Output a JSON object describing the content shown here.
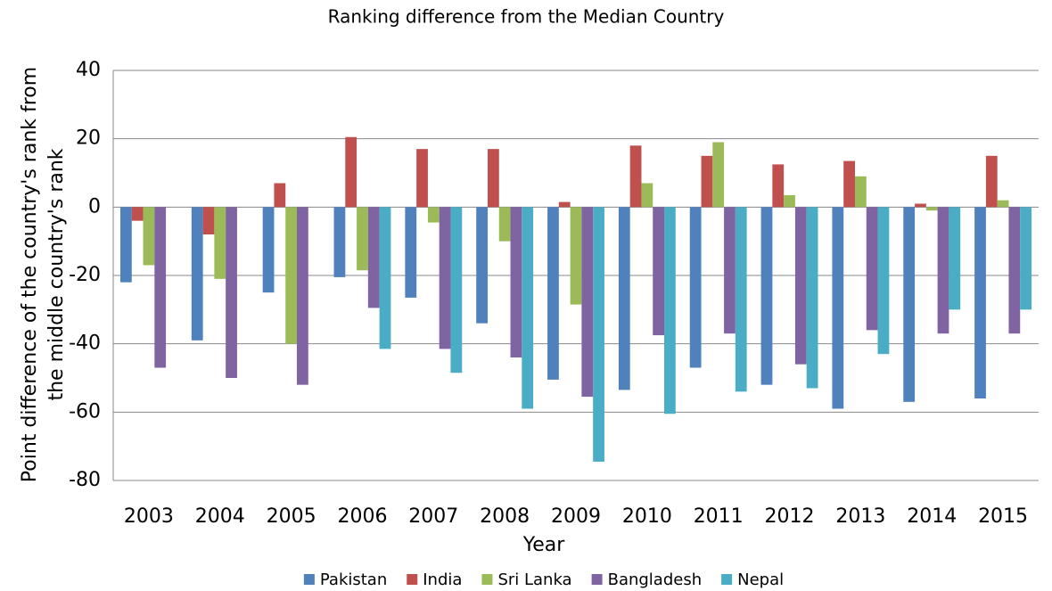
{
  "chart_data": {
    "type": "bar",
    "title": "Ranking difference from the Median Country",
    "x_label": "Year",
    "y_label": "Point difference of the country's rank from the middle country's rank",
    "categories": [
      "2003",
      "2004",
      "2005",
      "2006",
      "2007",
      "2008",
      "2009",
      "2010",
      "2011",
      "2012",
      "2013",
      "2014",
      "2015"
    ],
    "series": [
      {
        "name": "Pakistan",
        "color": "#4f81bd",
        "values": [
          -22,
          -39,
          -25,
          -20.5,
          -26.5,
          -34,
          -50.5,
          -53.5,
          -47,
          -52,
          -59,
          -57,
          -56
        ]
      },
      {
        "name": "India",
        "color": "#c0504d",
        "values": [
          -4,
          -8,
          7,
          20.5,
          17,
          17,
          1.5,
          18,
          15,
          12.5,
          13.5,
          1,
          15
        ]
      },
      {
        "name": "Sri Lanka",
        "color": "#9bbb59",
        "values": [
          -17,
          -21,
          -40,
          -18.5,
          -4.5,
          -10,
          -28.5,
          7,
          19,
          3.5,
          9,
          -1,
          2
        ]
      },
      {
        "name": "Bangladesh",
        "color": "#8064a2",
        "values": [
          -47,
          -50,
          -52,
          -29.5,
          -41.5,
          -44,
          -55.5,
          -37.5,
          -37,
          -46,
          -36,
          -37,
          -37
        ]
      },
      {
        "name": "Nepal",
        "color": "#4bacc6",
        "values": [
          null,
          null,
          null,
          -41.5,
          -48.5,
          -59,
          -74.5,
          -60.5,
          -54,
          -53,
          -43,
          -30,
          -30
        ]
      }
    ],
    "ylim": [
      -80,
      40
    ],
    "yticks": [
      -80,
      -60,
      -40,
      -20,
      0,
      20,
      40
    ],
    "grid": true,
    "legend": "bottom"
  }
}
